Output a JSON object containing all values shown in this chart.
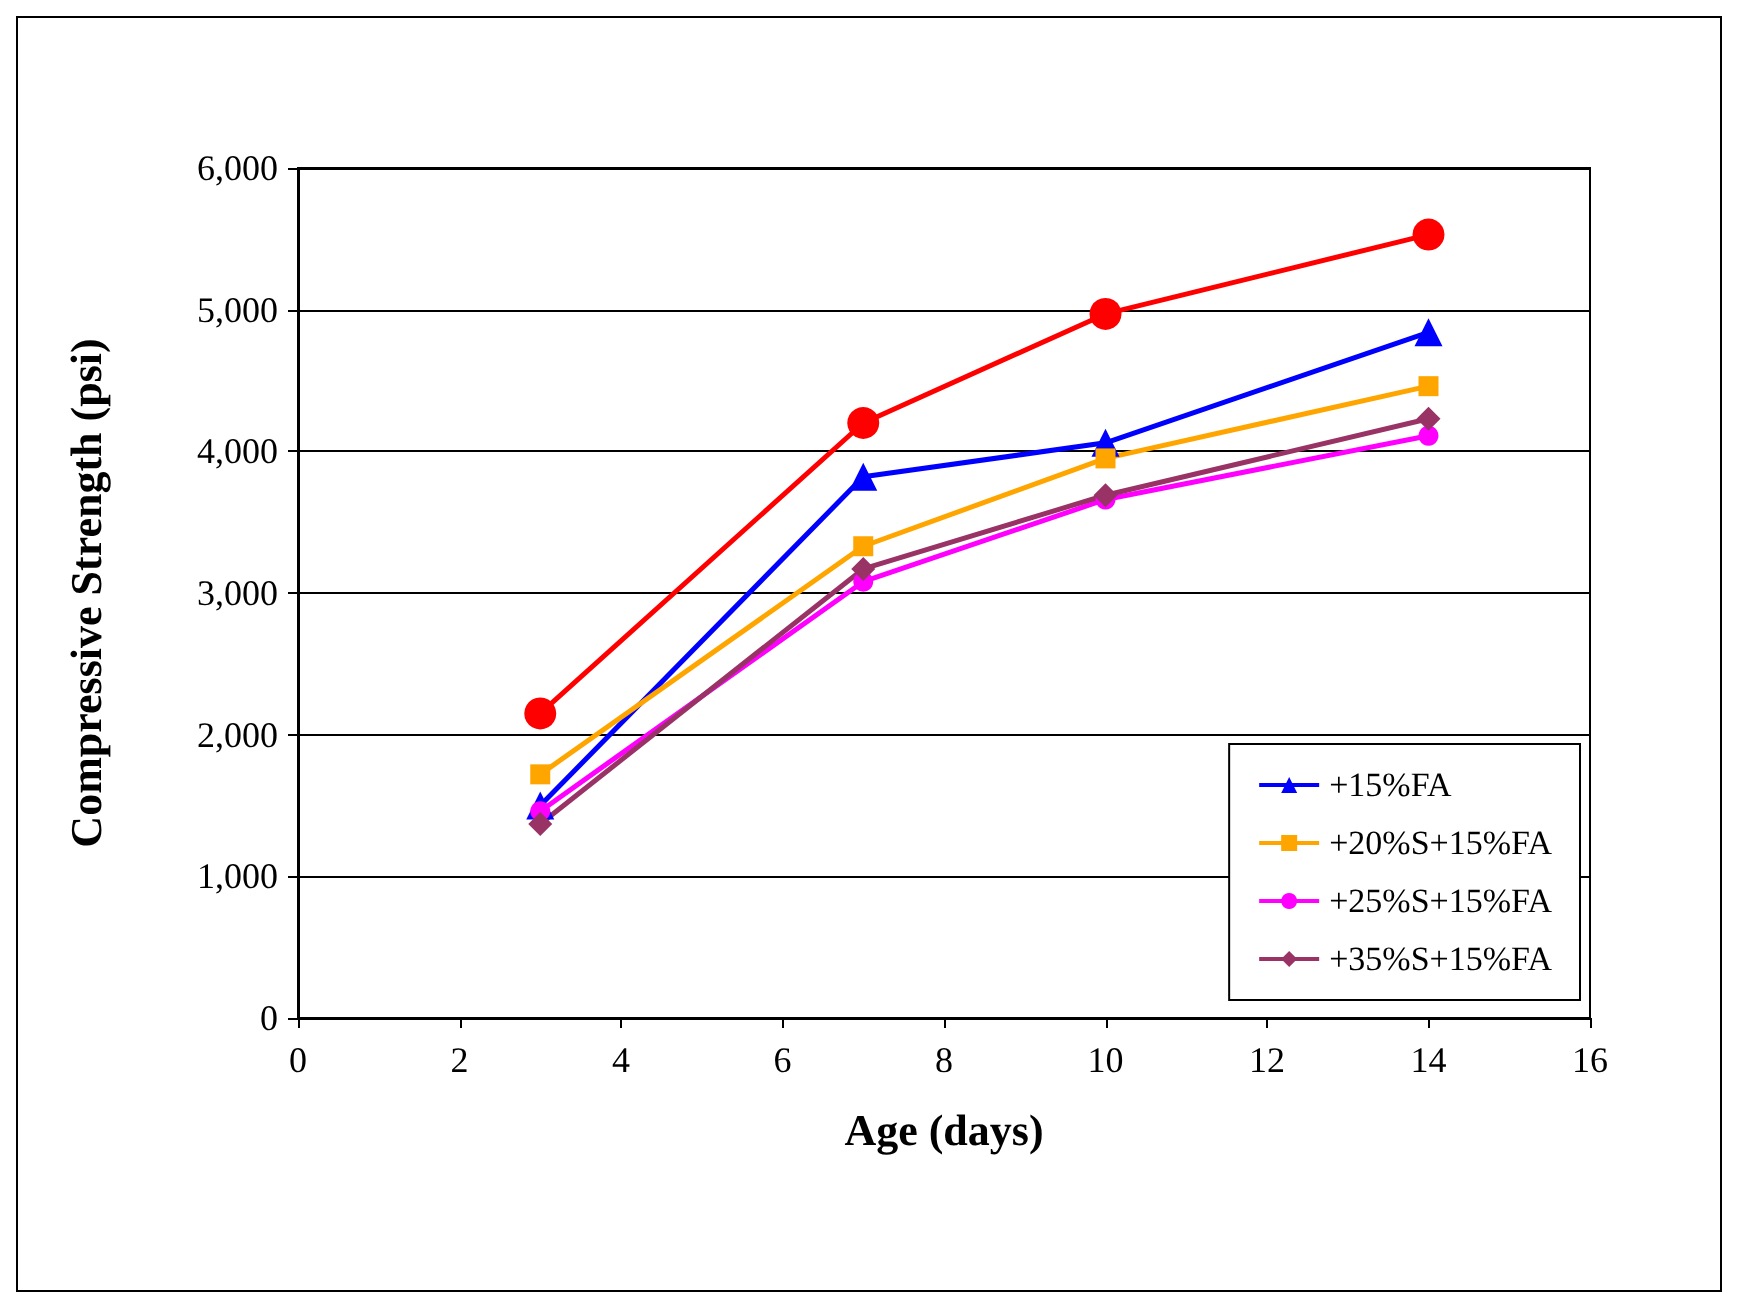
{
  "chart_data": {
    "type": "line",
    "xlabel": "Age (days)",
    "ylabel": "Compressive Strength (psi)",
    "xlim": [
      0,
      16
    ],
    "xticks": [
      0,
      2,
      4,
      6,
      8,
      10,
      12,
      14,
      16
    ],
    "ylim": [
      0,
      6000
    ],
    "yticks": [
      0,
      {
        "value": 1000,
        "label": "1,000"
      },
      {
        "value": 2000,
        "label": "2,000"
      },
      {
        "value": 3000,
        "label": "3,000"
      },
      {
        "value": 4000,
        "label": "4,000"
      },
      {
        "value": 5000,
        "label": "5,000"
      },
      {
        "value": 6000,
        "label": "6,000"
      }
    ],
    "x": [
      3,
      7,
      10,
      14
    ],
    "grid": "y",
    "legend": "bottom right",
    "line_style": "solid",
    "series": [
      {
        "color": "#ff0000",
        "marker": "circle",
        "values": [
          2150,
          4200,
          4970,
          5530
        ]
      },
      {
        "name": "+15%FA",
        "color": "#0000ff",
        "marker": "triangle",
        "values": [
          1500,
          3820,
          4060,
          4840
        ]
      },
      {
        "name": "+20%S+15%FA",
        "color": "#ffa500",
        "marker": "square",
        "values": [
          1720,
          3330,
          3950,
          4460
        ]
      },
      {
        "name": "+25%S+15%FA",
        "color": "#ff00ff",
        "marker": "circle",
        "values": [
          1460,
          3080,
          3660,
          4110
        ]
      },
      {
        "name": "+35%S+15%FA",
        "color": "#993366",
        "marker": "diamond",
        "values": [
          1370,
          3170,
          3690,
          4230
        ]
      }
    ]
  }
}
